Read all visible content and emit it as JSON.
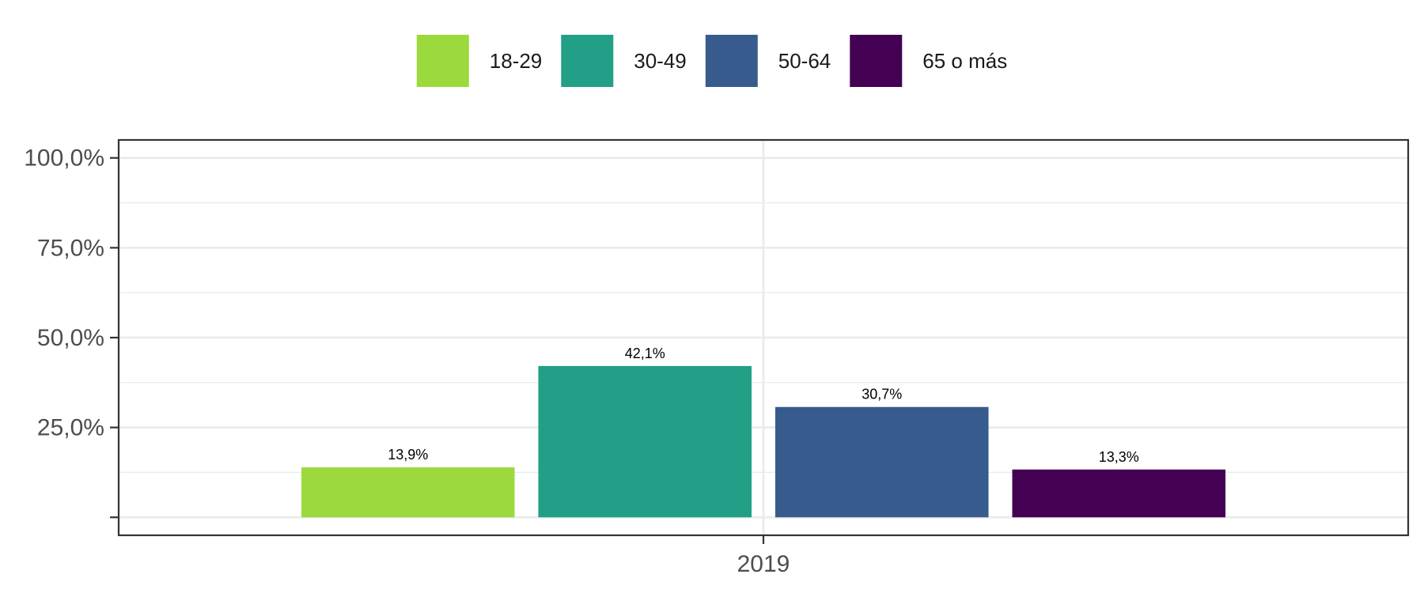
{
  "chart_data": {
    "type": "bar",
    "categories": [
      "2019"
    ],
    "series": [
      {
        "name": "18-29",
        "values": [
          13.9
        ],
        "label": "13,9%",
        "color": "#9bd93c"
      },
      {
        "name": "30-49",
        "values": [
          42.1
        ],
        "label": "42,1%",
        "color": "#21a087"
      },
      {
        "name": "50-64",
        "values": [
          30.7
        ],
        "label": "30,7%",
        "color": "#375b8d"
      },
      {
        "name": "65 o más",
        "values": [
          13.3
        ],
        "label": "13,3%",
        "color": "#440154"
      }
    ],
    "y_ticks": [
      {
        "value": 25,
        "label": "25,0%"
      },
      {
        "value": 50,
        "label": "50,0%"
      },
      {
        "value": 75,
        "label": "75,0%"
      },
      {
        "value": 100,
        "label": "100,0%"
      }
    ],
    "ylim": [
      -5,
      105
    ],
    "grid": true,
    "legend_position": "top",
    "title": "",
    "xlabel": "",
    "ylabel": ""
  }
}
